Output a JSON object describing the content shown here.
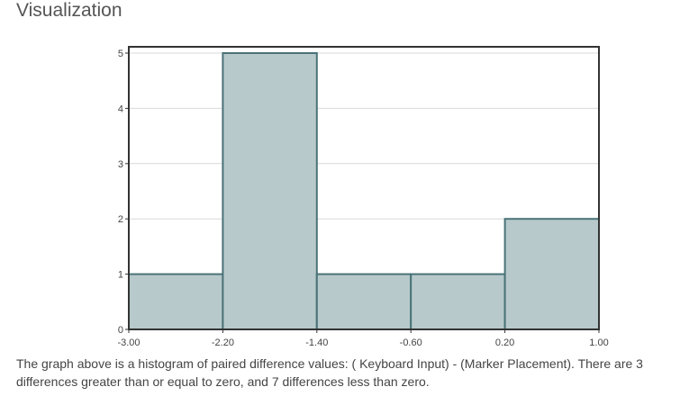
{
  "header": {
    "title": "Visualization"
  },
  "chart_data": {
    "type": "bar",
    "subtype": "histogram",
    "bin_edges": [
      -3.0,
      -2.2,
      -1.4,
      -0.6,
      0.2,
      1.0
    ],
    "x_tick_labels": [
      "-3.00",
      "-2.20",
      "-1.40",
      "-0.60",
      "0.20",
      "1.00"
    ],
    "values": [
      1,
      5,
      1,
      1,
      2
    ],
    "y_ticks": [
      0,
      1,
      2,
      3,
      4,
      5
    ],
    "xlim": [
      -3.0,
      1.0
    ],
    "ylim": [
      0,
      5
    ],
    "title": "",
    "xlabel": "",
    "ylabel": "",
    "grid": "horizontal",
    "colors": {
      "bar_fill": "#b7c9cb",
      "bar_stroke": "#4a7378",
      "axis": "#333333",
      "grid": "#d9d9d9"
    }
  },
  "caption": "The graph above is a histogram of paired difference values: ( Keyboard Input) - (Marker Placement). There are 3 differences greater than or equal to zero, and 7 differences less than zero."
}
